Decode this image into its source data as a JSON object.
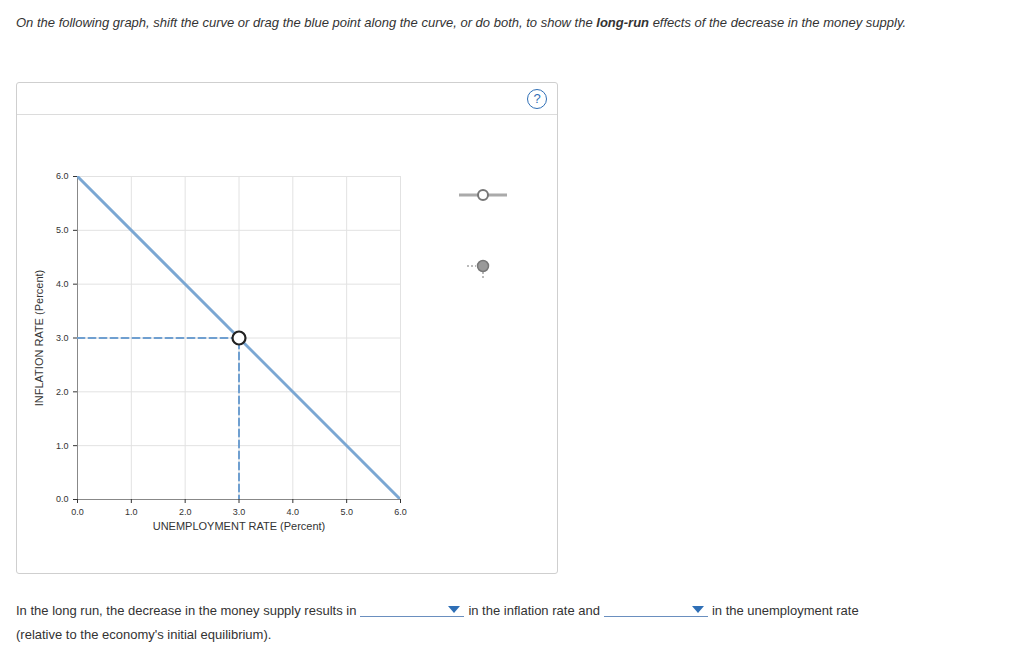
{
  "page": {
    "instruction": [
      {
        "text": "On the following graph, shift the curve or drag the blue point along the curve, or do both, to show the "
      },
      {
        "text": "long-run",
        "bold": true
      },
      {
        "text": " effects of the decrease in the money supply."
      }
    ],
    "help": "?",
    "answer": {
      "parts": [
        "In the long run, the decrease in the money supply results in",
        "in the inflation rate and",
        "in the unemployment rate"
      ],
      "note": "(relative to the economy's initial equilibrium)."
    }
  },
  "chart_data": {
    "type": "line",
    "xlabel": "UNEMPLOYMENT RATE (Percent)",
    "ylabel": "INFLATION RATE (Percent)",
    "xlim": [
      0,
      6
    ],
    "ylim": [
      0,
      6
    ],
    "xticks": [
      0,
      1,
      2,
      3,
      4,
      5,
      6
    ],
    "yticks": [
      0,
      1,
      2,
      3,
      4,
      5,
      6
    ],
    "grid": true,
    "series": [
      {
        "type": "line",
        "color": "#7ba7d3",
        "line_style": "solid",
        "x": [
          0,
          6
        ],
        "values": [
          6,
          0
        ]
      },
      {
        "type": "line",
        "color": "#6f9fd0",
        "line_style": "dashed",
        "x": [
          0,
          3,
          3
        ],
        "values": [
          3,
          3,
          0
        ]
      },
      {
        "type": "scatter",
        "color": "#222222",
        "marker": "circle",
        "x": [
          3
        ],
        "values": [
          3
        ]
      }
    ]
  }
}
